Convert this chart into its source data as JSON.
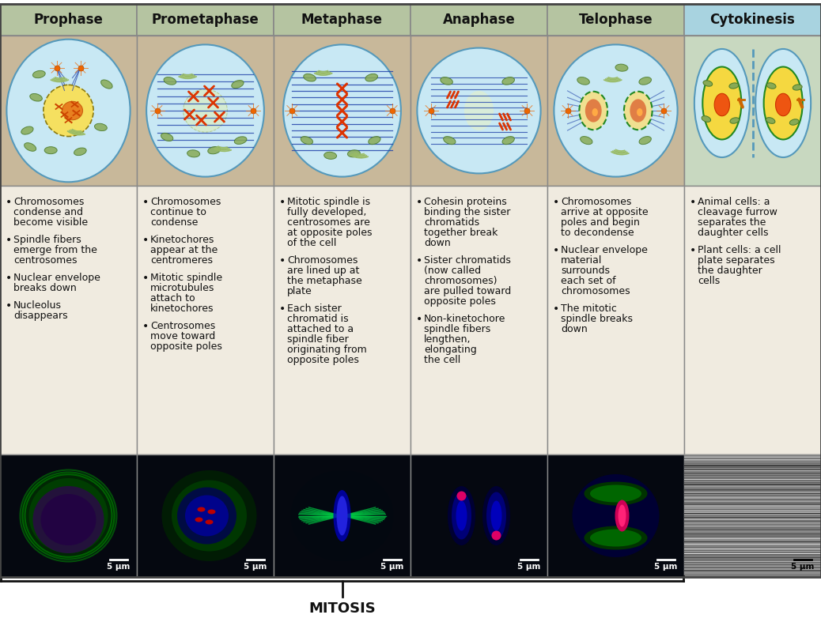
{
  "headers": [
    "Prophase",
    "Prometaphase",
    "Metaphase",
    "Anaphase",
    "Telophase",
    "Cytokinesis"
  ],
  "header_bg_mitosis": "#b5c4a1",
  "header_bg_cytokinesis": "#a8d3e0",
  "text_bg": "#f0ebe0",
  "diag_bg": "#c8b89a",
  "grid_color": "#888888",
  "cell_fill": "#d0eef5",
  "cell_border": "#5599bb",
  "spindle_color": "#2244aa",
  "chrom_color": "#dd3300",
  "organelle_color": "#88aa55",
  "centrosome_color": "#ee6600",
  "bullet_texts": [
    [
      "Chromosomes\ncondense and\nbecome visible",
      "Spindle fibers\nemerge from the\ncentrosomes",
      "Nuclear envelope\nbreaks down",
      "Nucleolus\ndisappears"
    ],
    [
      "Chromosomes\ncontinue to\ncondense",
      "Kinetochores\nappear at the\ncentromeres",
      "Mitotic spindle\nmicrotubules\nattach to\nkinetochores",
      "Centrosomes\nmove toward\nopposite poles"
    ],
    [
      "Mitotic spindle is\nfully developed,\ncentrosomes are\nat opposite poles\nof the cell",
      "Chromosomes\nare lined up at\nthe metaphase\nplate",
      "Each sister\nchromatid is\nattached to a\nspindle fiber\noriginating from\nopposite poles"
    ],
    [
      "Cohesin proteins\nbinding the sister\nchromatids\ntogether break\ndown",
      "Sister chromatids\n(now called\nchromosomes)\nare pulled toward\nopposite poles",
      "Non-kinetochore\nspindle fibers\nlengthen,\nelongating\nthe cell"
    ],
    [
      "Chromosomes\narrive at opposite\npoles and begin\nto decondense",
      "Nuclear envelope\nmaterial\nsurrounds\neach set of\nchromosomes",
      "The mitotic\nspindle breaks\ndown"
    ],
    [
      "Animal cells: a\ncleavage furrow\nseparates the\ndaughter cells",
      "Plant cells: a cell\nplate separates\nthe daughter\ncells"
    ]
  ],
  "mitosis_label": "MITOSIS",
  "scale_label": "5 μm",
  "title_fontsize": 12,
  "body_fontsize": 9,
  "fig_width": 10.38,
  "fig_height": 8.11,
  "bg_color": "#ffffff"
}
